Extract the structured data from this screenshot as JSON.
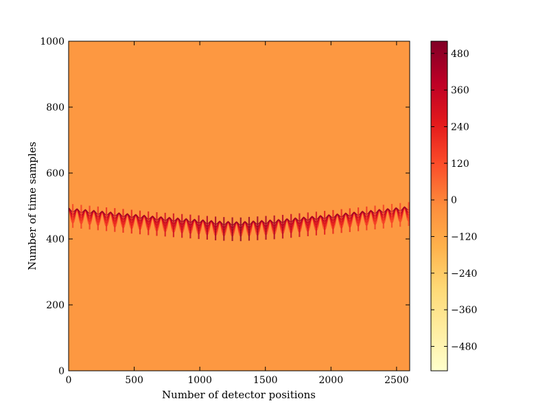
{
  "chart_data": {
    "type": "heatmap",
    "title": "",
    "xlabel": "Number of detector positions",
    "ylabel": "Number of time samples",
    "xlim": [
      0,
      2600
    ],
    "ylim": [
      0,
      1000
    ],
    "x_ticks": [
      0,
      500,
      1000,
      1500,
      2000,
      2500
    ],
    "y_ticks": [
      0,
      200,
      400,
      600,
      800,
      1000
    ],
    "background_value": -60,
    "colormap": "YlOrRd",
    "colormap_stops": [
      "#ffffcc",
      "#ffeda0",
      "#fed976",
      "#feb24c",
      "#fd8d3c",
      "#fc4e2a",
      "#e31a1c",
      "#bd0026",
      "#800026"
    ],
    "colorbar": {
      "range": [
        -560,
        520
      ],
      "ticks": [
        480,
        360,
        240,
        120,
        0,
        -120,
        -240,
        -360,
        -480
      ],
      "tick_labels": [
        "480",
        "360",
        "240",
        "120",
        "0",
        "−120",
        "−240",
        "−360",
        "−480"
      ]
    },
    "signal_band": {
      "description_points": [
        {
          "x": 0,
          "center_time": 480,
          "peak_value": 150
        },
        {
          "x": 650,
          "center_time": 455,
          "peak_value": 280
        },
        {
          "x": 1150,
          "center_time": 440,
          "peak_value": 450
        },
        {
          "x": 1300,
          "center_time": 438,
          "peak_value": 500
        },
        {
          "x": 1600,
          "center_time": 445,
          "peak_value": 420
        },
        {
          "x": 2000,
          "center_time": 460,
          "peak_value": 250
        },
        {
          "x": 2600,
          "center_time": 485,
          "peak_value": 120
        }
      ],
      "oscillation_period": 64,
      "time_half_width": 45
    }
  }
}
